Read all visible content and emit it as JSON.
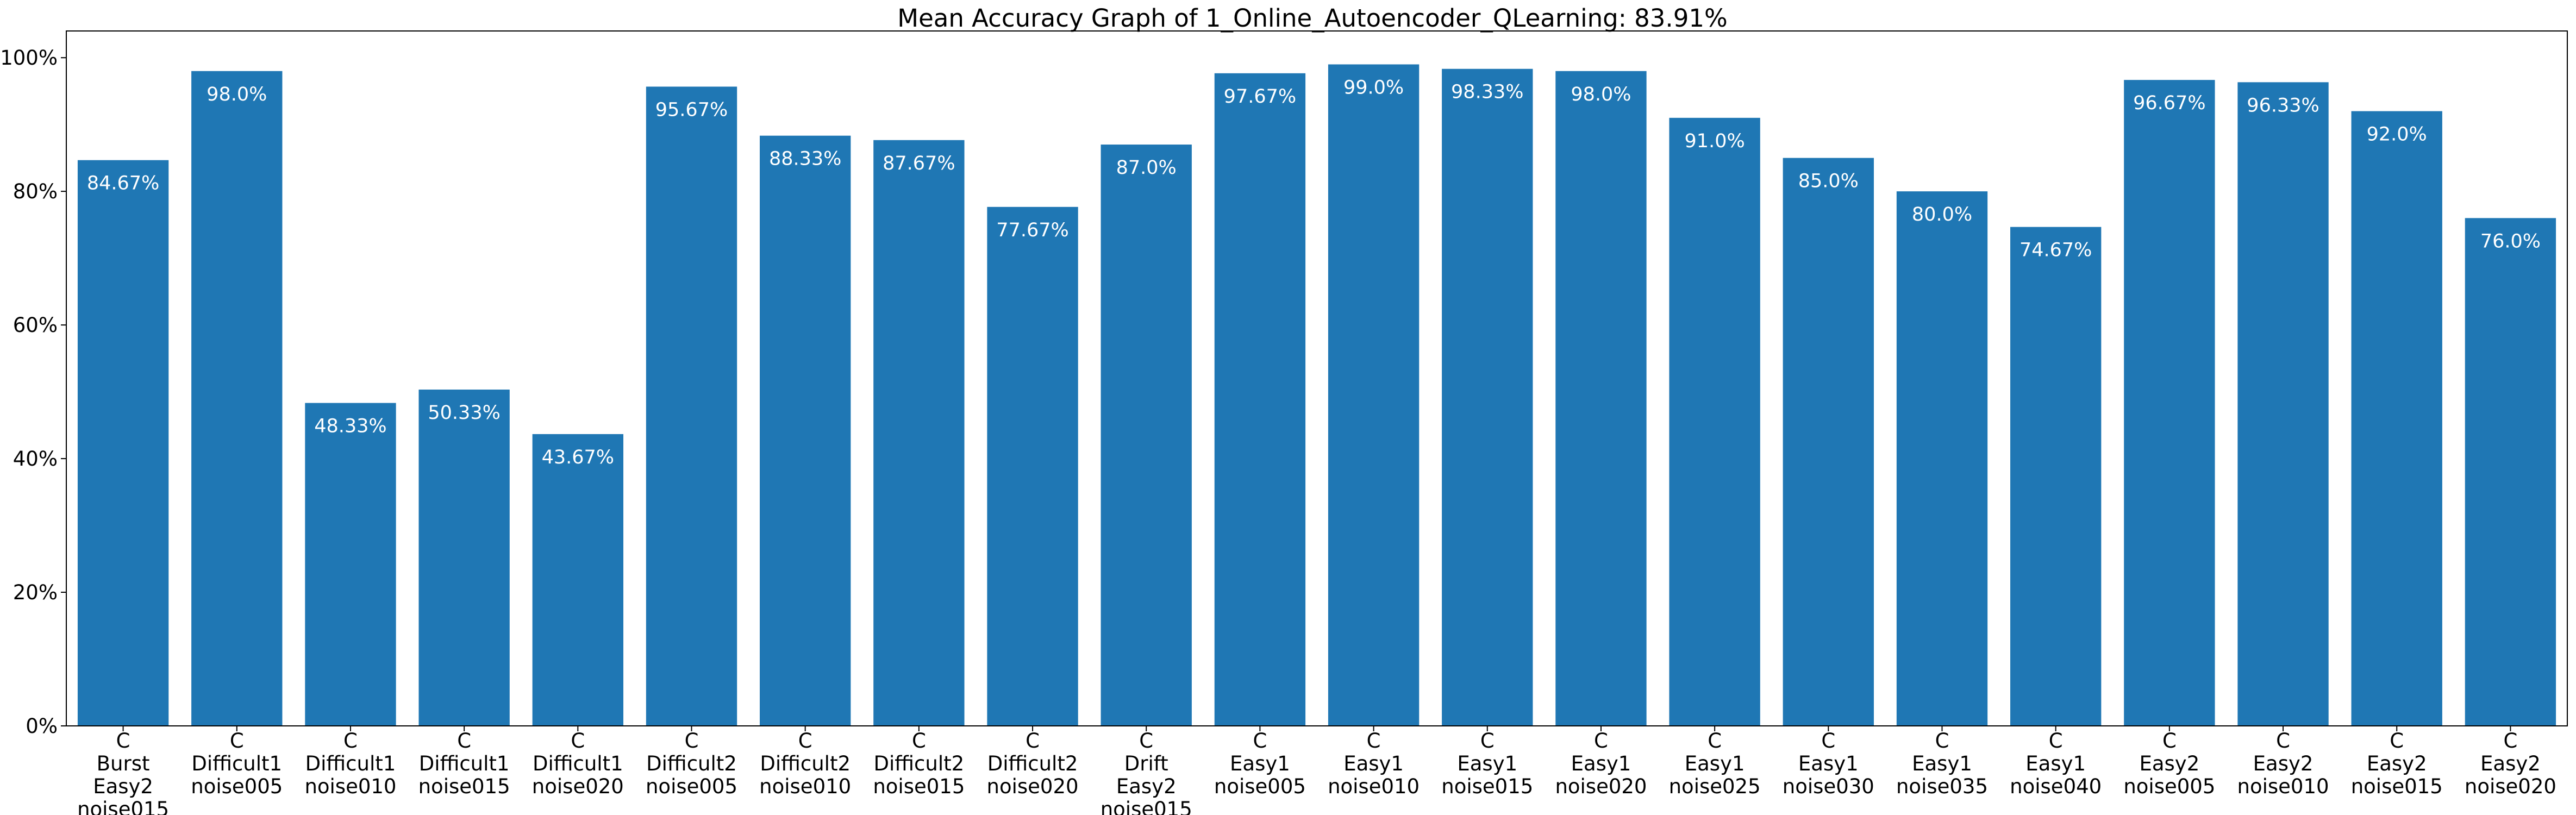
{
  "chart_data": {
    "type": "bar",
    "title": "Mean Accuracy Graph of 1_Online_Autoencoder_QLearning: 83.91%",
    "xlabel": "",
    "ylabel": "",
    "ylim": [
      0,
      104
    ],
    "yticks": [
      0,
      20,
      40,
      60,
      80,
      100
    ],
    "ytick_labels": [
      "0%",
      "20%",
      "40%",
      "60%",
      "80%",
      "100%"
    ],
    "bar_color": "#1f77b4",
    "label_color": "#ffffff",
    "grid": false,
    "categories": [
      [
        "C",
        "Burst",
        "Easy2",
        "noise015"
      ],
      [
        "C",
        "Difficult1",
        "noise005"
      ],
      [
        "C",
        "Difficult1",
        "noise010"
      ],
      [
        "C",
        "Difficult1",
        "noise015"
      ],
      [
        "C",
        "Difficult1",
        "noise020"
      ],
      [
        "C",
        "Difficult2",
        "noise005"
      ],
      [
        "C",
        "Difficult2",
        "noise010"
      ],
      [
        "C",
        "Difficult2",
        "noise015"
      ],
      [
        "C",
        "Difficult2",
        "noise020"
      ],
      [
        "C",
        "Drift",
        "Easy2",
        "noise015"
      ],
      [
        "C",
        "Easy1",
        "noise005"
      ],
      [
        "C",
        "Easy1",
        "noise010"
      ],
      [
        "C",
        "Easy1",
        "noise015"
      ],
      [
        "C",
        "Easy1",
        "noise020"
      ],
      [
        "C",
        "Easy1",
        "noise025"
      ],
      [
        "C",
        "Easy1",
        "noise030"
      ],
      [
        "C",
        "Easy1",
        "noise035"
      ],
      [
        "C",
        "Easy1",
        "noise040"
      ],
      [
        "C",
        "Easy2",
        "noise005"
      ],
      [
        "C",
        "Easy2",
        "noise010"
      ],
      [
        "C",
        "Easy2",
        "noise015"
      ],
      [
        "C",
        "Easy2",
        "noise020"
      ]
    ],
    "values": [
      84.67,
      98.0,
      48.33,
      50.33,
      43.67,
      95.67,
      88.33,
      87.67,
      77.67,
      87.0,
      97.67,
      99.0,
      98.33,
      98.0,
      91.0,
      85.0,
      80.0,
      74.67,
      96.67,
      96.33,
      92.0,
      76.0
    ],
    "value_labels": [
      "84.67%",
      "98.0%",
      "48.33%",
      "50.33%",
      "43.67%",
      "95.67%",
      "88.33%",
      "87.67%",
      "77.67%",
      "87.0%",
      "97.67%",
      "99.0%",
      "98.33%",
      "98.0%",
      "91.0%",
      "85.0%",
      "80.0%",
      "74.67%",
      "96.67%",
      "96.33%",
      "92.0%",
      "76.0%"
    ]
  }
}
